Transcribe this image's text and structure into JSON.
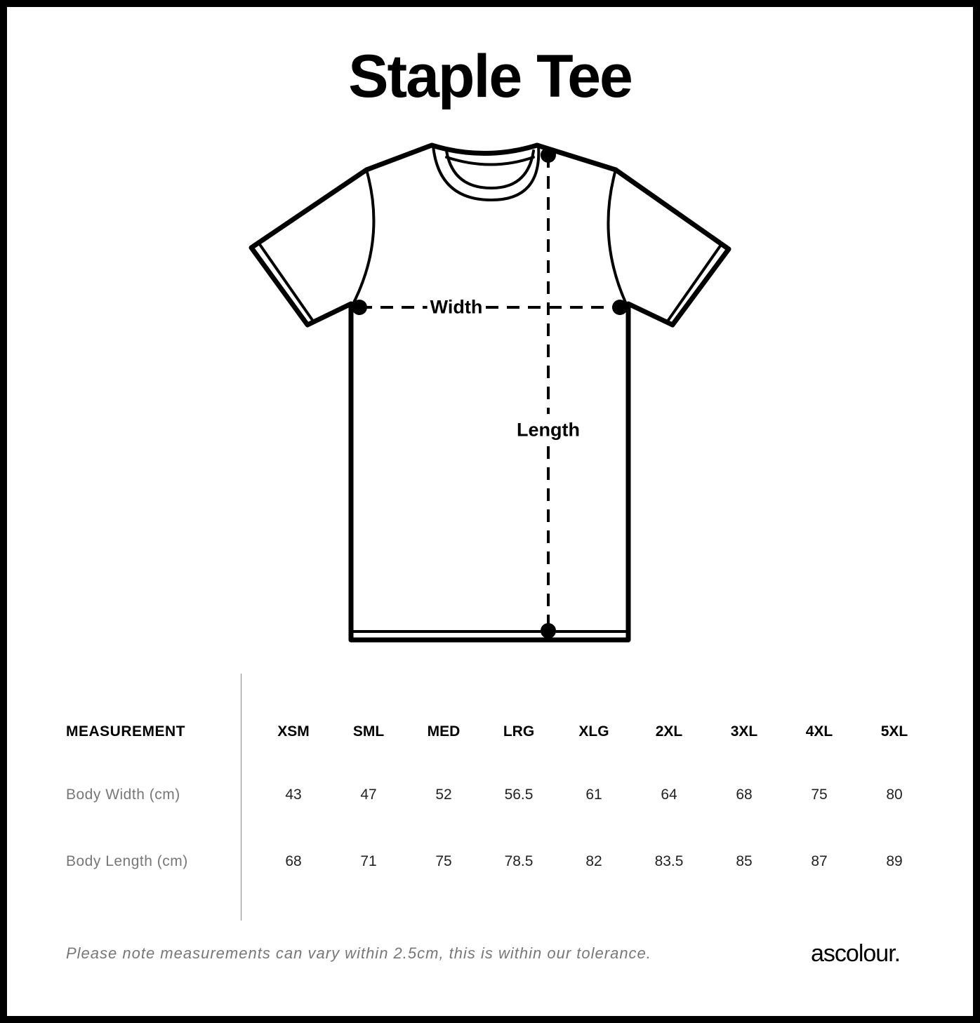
{
  "title": "Staple Tee",
  "diagram": {
    "width_label": "Width",
    "length_label": "Length"
  },
  "table": {
    "header_label": "MEASUREMENT",
    "sizes": [
      "XSM",
      "SML",
      "MED",
      "LRG",
      "XLG",
      "2XL",
      "3XL",
      "4XL",
      "5XL"
    ],
    "rows": [
      {
        "label": "Body Width (cm)",
        "values": [
          "43",
          "47",
          "52",
          "56.5",
          "61",
          "64",
          "68",
          "75",
          "80"
        ]
      },
      {
        "label": "Body Length (cm)",
        "values": [
          "68",
          "71",
          "75",
          "78.5",
          "82",
          "83.5",
          "85",
          "87",
          "89"
        ]
      }
    ]
  },
  "footer": {
    "note": "Please note measurements can vary within 2.5cm, this is within our tolerance.",
    "logo": "ascolour."
  }
}
